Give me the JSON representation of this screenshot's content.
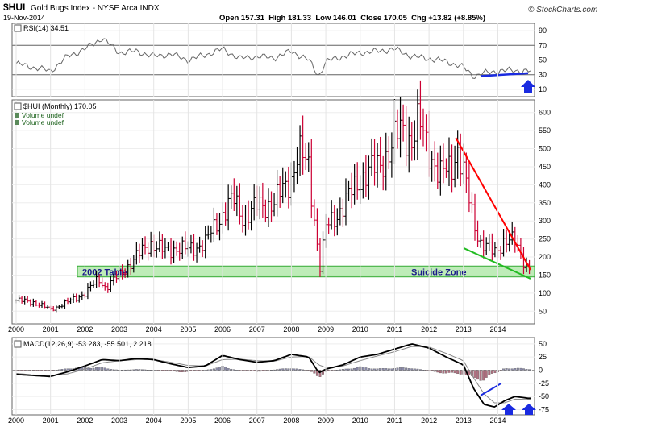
{
  "header": {
    "symbol": "$HUI",
    "name": "Gold Bugs Index - NYSE Arca INDX",
    "date": "19-Nov-2014",
    "brand": "© StockCharts.com",
    "quote": "Open 157.31  High 181.33  Low 146.01  Close 170.05  Chg +13.82 (+8.85%)"
  },
  "colors": {
    "up": "#000000",
    "down": "#cc0033",
    "trendline_red": "#ff0000",
    "trendline_green": "#22bb22",
    "zone_fill": "#a8e6a0",
    "zone_stroke": "#33aa33",
    "macd_line": "#000000",
    "signal_line": "#888888",
    "hist_pos": "#8a8aa8",
    "hist_neg": "#b07080",
    "rsi_line": "#666666",
    "marker_blue": "#1a2be0"
  },
  "rsi": {
    "label": "RSI(14) 34.51",
    "ticks": [
      "90",
      "70",
      "50",
      "30",
      "10"
    ],
    "tick_values": [
      90,
      70,
      50,
      30,
      10
    ],
    "levels": [
      70,
      50,
      30
    ],
    "ylim": [
      0,
      100
    ]
  },
  "price": {
    "label": "$HUI (Monthly) 170.05",
    "legend": [
      "Volume undef",
      "Volume undef"
    ],
    "ticks": [
      "600",
      "550",
      "500",
      "450",
      "400",
      "350",
      "300",
      "250",
      "200",
      "150",
      "100",
      "50"
    ],
    "tick_values": [
      600,
      550,
      500,
      450,
      400,
      350,
      300,
      250,
      200,
      150,
      100,
      50
    ],
    "ylim": [
      15,
      635
    ],
    "zone": {
      "low": 145,
      "high": 175
    },
    "annotations": {
      "table": "2002 Table",
      "zone": "Suicide Zone"
    }
  },
  "macd": {
    "label": "MACD(12,26,9) -53.283, -55.501, 2.218",
    "ticks": [
      "50",
      "25",
      "0",
      "-25",
      "-50",
      "-75"
    ],
    "tick_values": [
      50,
      25,
      0,
      -25,
      -50,
      -75
    ],
    "ylim": [
      -85,
      62
    ]
  },
  "xaxis": {
    "labels": [
      "2000",
      "2001",
      "2002",
      "2003",
      "2004",
      "2005",
      "2006",
      "2007",
      "2008",
      "2009",
      "2010",
      "2011",
      "2012",
      "2013",
      "2014"
    ],
    "start": 2000.0,
    "end": 2014.95
  },
  "chart_data": {
    "type": "line",
    "title": "$HUI (Monthly) 170.05",
    "x": [
      2000.0,
      2000.5,
      2001.0,
      2001.5,
      2002.0,
      2002.4,
      2002.6,
      2003.0,
      2003.5,
      2003.9,
      2004.3,
      2004.6,
      2005.0,
      2005.5,
      2006.0,
      2006.3,
      2006.6,
      2007.0,
      2007.5,
      2008.0,
      2008.2,
      2008.5,
      2008.83,
      2009.0,
      2009.5,
      2010.0,
      2010.5,
      2010.9,
      2011.2,
      2011.5,
      2011.7,
      2012.0,
      2012.3,
      2012.7,
      2012.8,
      2013.0,
      2013.3,
      2013.5,
      2013.9,
      2014.2,
      2014.5,
      2014.7,
      2014.88
    ],
    "y": [
      80,
      75,
      55,
      75,
      100,
      140,
      115,
      150,
      200,
      240,
      215,
      225,
      220,
      240,
      320,
      360,
      310,
      340,
      350,
      420,
      490,
      450,
      170,
      280,
      340,
      420,
      450,
      500,
      560,
      520,
      570,
      500,
      420,
      460,
      510,
      430,
      300,
      240,
      210,
      250,
      240,
      200,
      170
    ],
    "series_name": "$HUI (Monthly)",
    "rsi": {
      "x": [
        2000.0,
        2000.5,
        2001.0,
        2001.5,
        2002.0,
        2002.5,
        2003.0,
        2003.5,
        2004.0,
        2004.5,
        2005.0,
        2005.5,
        2006.0,
        2006.5,
        2007.0,
        2007.5,
        2008.0,
        2008.5,
        2008.8,
        2009.0,
        2009.5,
        2010.0,
        2010.5,
        2011.0,
        2011.5,
        2012.0,
        2012.5,
        2013.0,
        2013.3,
        2013.6,
        2014.0,
        2014.5,
        2014.88
      ],
      "y": [
        45,
        40,
        35,
        55,
        65,
        80,
        60,
        62,
        55,
        58,
        50,
        57,
        65,
        52,
        55,
        53,
        62,
        50,
        28,
        48,
        55,
        60,
        62,
        65,
        55,
        52,
        48,
        40,
        28,
        32,
        35,
        36,
        34.51
      ]
    },
    "macd_series": {
      "x": [
        2000.0,
        2000.5,
        2001.0,
        2001.5,
        2002.0,
        2002.5,
        2003.0,
        2003.5,
        2004.0,
        2004.5,
        2005.0,
        2005.5,
        2006.0,
        2006.5,
        2007.0,
        2007.5,
        2008.0,
        2008.5,
        2008.8,
        2009.0,
        2009.5,
        2010.0,
        2010.5,
        2011.0,
        2011.5,
        2012.0,
        2012.5,
        2013.0,
        2013.3,
        2013.6,
        2013.9,
        2014.2,
        2014.5,
        2014.88
      ],
      "macd": [
        -8,
        -10,
        -12,
        -3,
        8,
        20,
        18,
        22,
        20,
        12,
        5,
        8,
        28,
        20,
        15,
        18,
        30,
        25,
        -5,
        2,
        10,
        25,
        30,
        40,
        50,
        42,
        25,
        10,
        -35,
        -65,
        -70,
        -58,
        -50,
        -53.283
      ],
      "signal": [
        -6,
        -9,
        -10,
        -7,
        2,
        14,
        18,
        20,
        20,
        15,
        9,
        8,
        20,
        21,
        18,
        17,
        25,
        26,
        10,
        5,
        8,
        18,
        27,
        35,
        45,
        44,
        32,
        18,
        -15,
        -45,
        -62,
        -62,
        -55,
        -55.501
      ],
      "histogram": [
        -2,
        -1,
        -2,
        4,
        6,
        6,
        0,
        2,
        0,
        -3,
        -4,
        0,
        8,
        -1,
        -3,
        1,
        5,
        -1,
        -15,
        -3,
        2,
        7,
        3,
        5,
        5,
        -2,
        -7,
        -8,
        -20,
        -20,
        -8,
        4,
        5,
        2.218
      ]
    }
  }
}
